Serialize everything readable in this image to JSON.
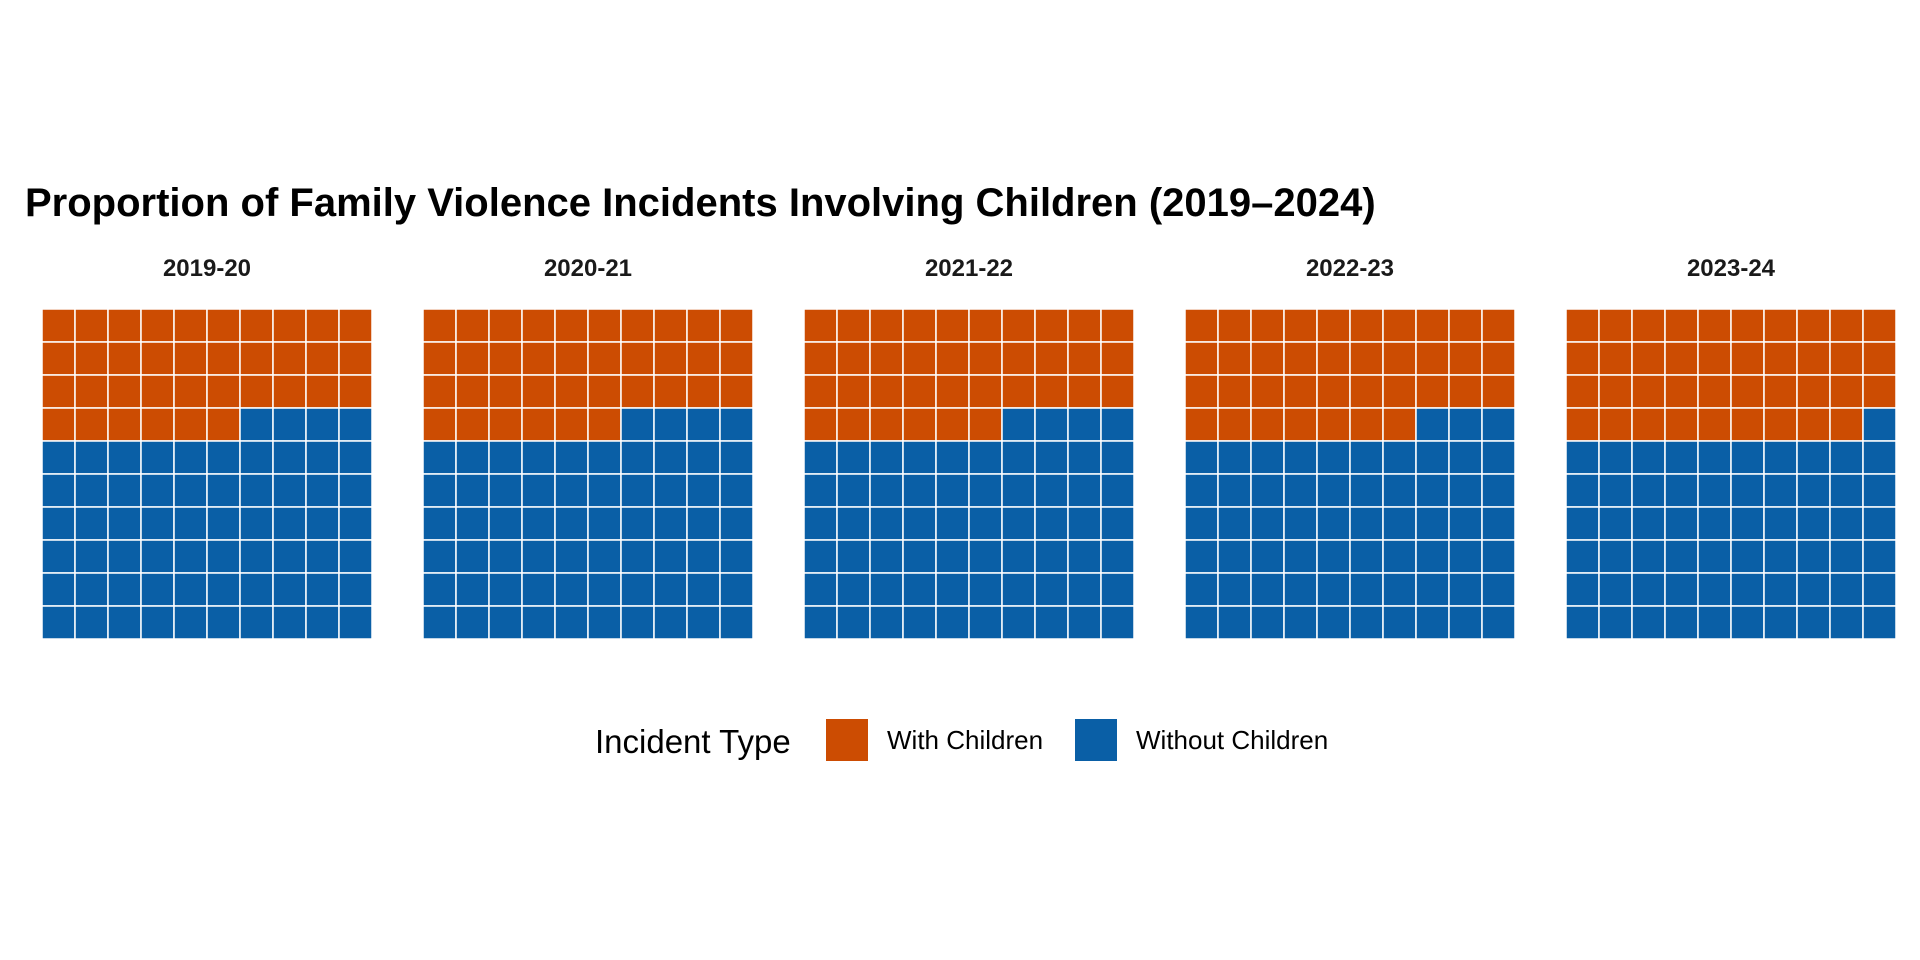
{
  "chart_data": {
    "type": "waffle",
    "title": "Proportion of Family Violence Incidents Involving Children (2019–2024)",
    "grid": {
      "rows": 10,
      "cols": 10,
      "total": 100
    },
    "facets": [
      {
        "label": "2019-20",
        "with_children": 36
      },
      {
        "label": "2020-21",
        "with_children": 36
      },
      {
        "label": "2021-22",
        "with_children": 36
      },
      {
        "label": "2022-23",
        "with_children": 37
      },
      {
        "label": "2023-24",
        "with_children": 39
      }
    ],
    "legend": {
      "title": "Incident Type",
      "position": "bottom",
      "items": [
        {
          "label": "With Children",
          "color": "#CC4C02"
        },
        {
          "label": "Without Children",
          "color": "#0A5FA6"
        }
      ]
    },
    "tile_border_color": "#ffffff",
    "grid_lines": false
  }
}
